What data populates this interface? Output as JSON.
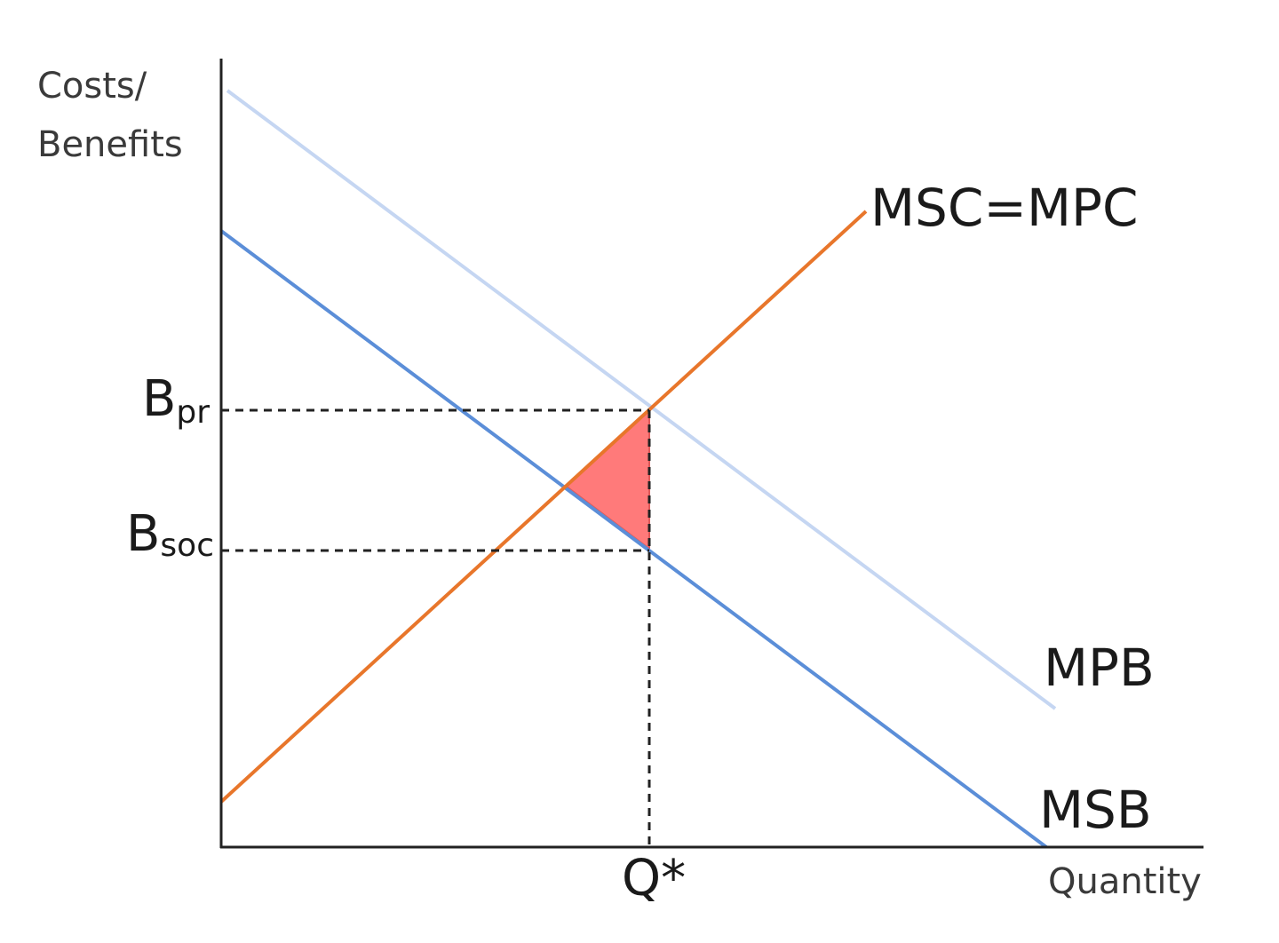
{
  "axes": {
    "y_label_line1": "Costs/",
    "y_label_line2": "Benefits",
    "x_label": "Quantity"
  },
  "curves": {
    "supply_label": "MSC=MPC",
    "mpb_label": "MPB",
    "msb_label": "MSB"
  },
  "levels": {
    "b_pr_main": "B",
    "b_pr_sub": "pr",
    "b_soc_main": "B",
    "b_soc_sub": "soc",
    "q_star": "Q*"
  },
  "colors": {
    "supply": "#e8762b",
    "mpb": "#c5d6f2",
    "msb": "#5b8ed8",
    "welfare_loss": "#ff7a7a",
    "axis": "#222222",
    "dashed": "#222222"
  }
}
